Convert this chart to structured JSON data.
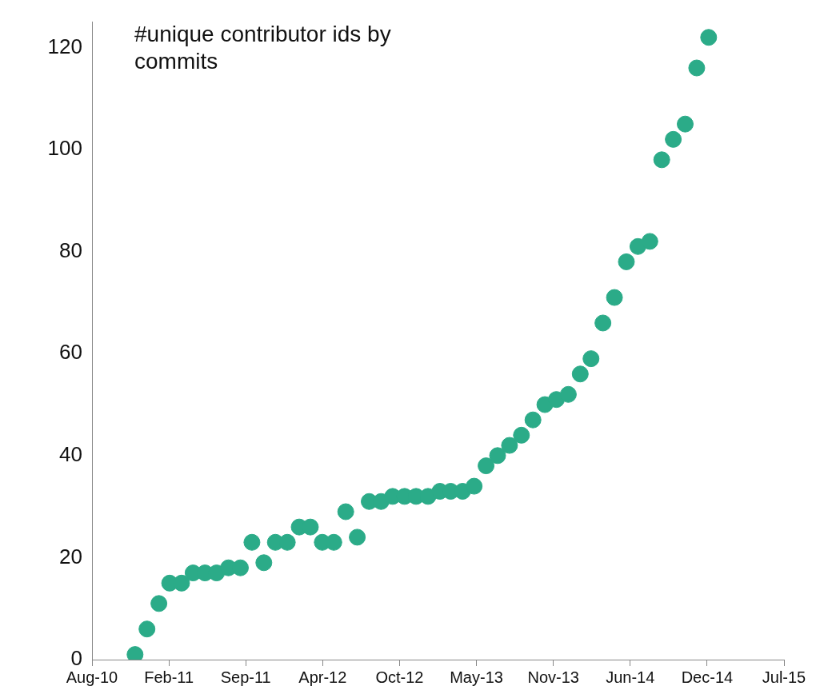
{
  "chart_data": {
    "type": "scatter",
    "title": "#unique contributor ids by commits",
    "x": [
      "2010-12-01",
      "2011-01-01",
      "2011-02-01",
      "2011-03-01",
      "2011-04-01",
      "2011-05-01",
      "2011-06-01",
      "2011-07-01",
      "2011-08-01",
      "2011-09-01",
      "2011-10-01",
      "2011-11-01",
      "2011-12-01",
      "2012-01-01",
      "2012-02-01",
      "2012-03-01",
      "2012-04-01",
      "2012-05-01",
      "2012-06-01",
      "2012-07-01",
      "2012-08-01",
      "2012-09-01",
      "2012-10-01",
      "2012-11-01",
      "2012-12-01",
      "2013-01-01",
      "2013-02-01",
      "2013-03-01",
      "2013-04-01",
      "2013-05-01",
      "2013-06-01",
      "2013-07-01",
      "2013-08-01",
      "2013-09-01",
      "2013-10-01",
      "2013-11-01",
      "2013-12-01",
      "2014-01-01",
      "2014-02-01",
      "2014-03-01",
      "2014-04-01",
      "2014-05-01",
      "2014-06-01",
      "2014-07-01",
      "2014-08-01",
      "2014-09-01",
      "2014-10-01",
      "2014-11-01",
      "2014-12-01",
      "2015-01-01"
    ],
    "values": [
      1,
      6,
      11,
      15,
      15,
      17,
      17,
      17,
      18,
      18,
      23,
      19,
      23,
      23,
      26,
      26,
      23,
      23,
      29,
      24,
      31,
      31,
      32,
      32,
      32,
      32,
      33,
      33,
      33,
      34,
      38,
      40,
      42,
      44,
      47,
      50,
      51,
      52,
      56,
      59,
      66,
      71,
      78,
      81,
      82,
      98,
      102,
      105,
      116,
      122
    ],
    "color": "#2bab88",
    "marker": "circle",
    "xlim": [
      "2010-08-11",
      "2015-07-16"
    ],
    "xticks": [
      {
        "value": "2010-08-11",
        "label": "Aug-10"
      },
      {
        "value": "2011-02-27",
        "label": "Feb-11"
      },
      {
        "value": "2011-09-15",
        "label": "Sep-11"
      },
      {
        "value": "2012-04-02",
        "label": "Apr-12"
      },
      {
        "value": "2012-10-19",
        "label": "Oct-12"
      },
      {
        "value": "2013-05-07",
        "label": "May-13"
      },
      {
        "value": "2013-11-23",
        "label": "Nov-13"
      },
      {
        "value": "2014-06-11",
        "label": "Jun-14"
      },
      {
        "value": "2014-12-28",
        "label": "Dec-14"
      },
      {
        "value": "2015-07-16",
        "label": "Jul-15"
      }
    ],
    "ylim": [
      0,
      125
    ],
    "yticks": [
      0,
      20,
      40,
      60,
      80,
      100,
      120
    ],
    "grid": false,
    "legend": false
  }
}
